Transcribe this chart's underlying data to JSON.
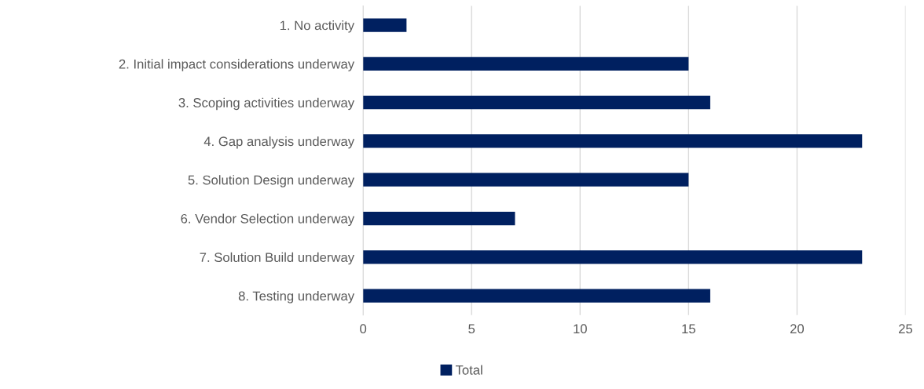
{
  "chart_data": {
    "type": "bar",
    "orientation": "horizontal",
    "categories": [
      "1. No activity",
      "2. Initial impact considerations underway",
      "3. Scoping activities underway",
      "4. Gap analysis underway",
      "5. Solution Design underway",
      "6. Vendor Selection underway",
      "7. Solution Build underway",
      "8. Testing underway"
    ],
    "series": [
      {
        "name": "Total",
        "color": "#002060",
        "values": [
          2,
          15,
          16,
          23,
          15,
          7,
          23,
          16
        ]
      }
    ],
    "xlim": [
      0,
      25
    ],
    "xticks": [
      0,
      5,
      10,
      15,
      20,
      25
    ],
    "grid": "x",
    "legend": "bottom"
  }
}
